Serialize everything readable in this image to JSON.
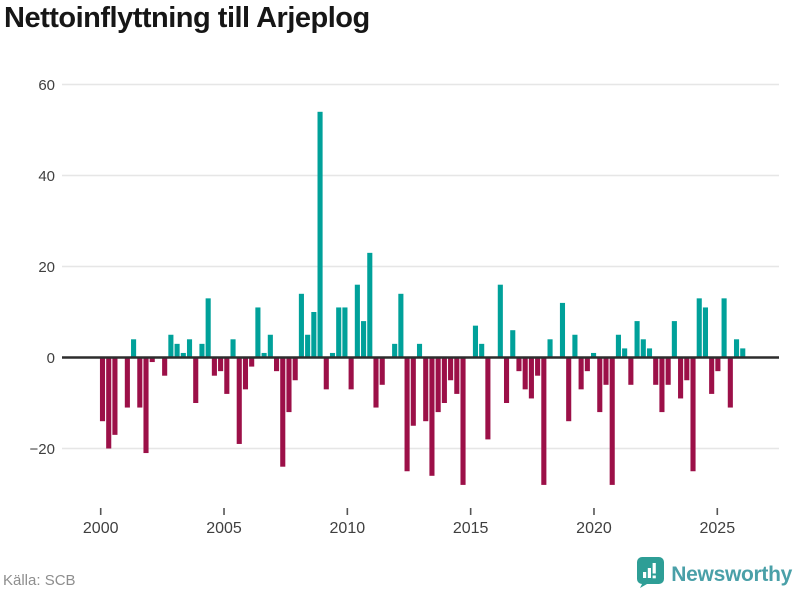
{
  "title": "Nettoinflyttning till Arjeplog",
  "source": "Källa: SCB",
  "brand": "Newsworthy",
  "chart_data": {
    "type": "bar",
    "title": "Nettoinflyttning till Arjeplog",
    "xlabel": "",
    "ylabel": "",
    "x_tick_labels": [
      "2000",
      "2005",
      "2010",
      "2015",
      "2020",
      "2025"
    ],
    "y_ticks": [
      60,
      40,
      20,
      0,
      -20
    ],
    "y_tick_labels": [
      "60",
      "40",
      "20",
      "0",
      "−20"
    ],
    "ylim": [
      -32,
      62
    ],
    "grid": "horizontal",
    "legend": "none",
    "bar_unit": "quarter",
    "positive_color": "#00a19a",
    "negative_color": "#9c1048",
    "series_by_year": [
      {
        "year": 2000,
        "values": [
          -14,
          -20,
          -17,
          0
        ]
      },
      {
        "year": 2001,
        "values": [
          -11,
          4,
          -11,
          -21
        ]
      },
      {
        "year": 2002,
        "values": [
          -1,
          0,
          -4,
          5
        ]
      },
      {
        "year": 2003,
        "values": [
          3,
          1,
          4,
          -10
        ]
      },
      {
        "year": 2004,
        "values": [
          3,
          13,
          -4,
          -3
        ]
      },
      {
        "year": 2005,
        "values": [
          -8,
          4,
          -19,
          -7
        ]
      },
      {
        "year": 2006,
        "values": [
          -2,
          11,
          1,
          5
        ]
      },
      {
        "year": 2007,
        "values": [
          -3,
          -24,
          -12,
          -5
        ]
      },
      {
        "year": 2008,
        "values": [
          14,
          5,
          10,
          54
        ]
      },
      {
        "year": 2009,
        "values": [
          -7,
          1,
          11,
          11
        ]
      },
      {
        "year": 2010,
        "values": [
          -7,
          16,
          8,
          23
        ]
      },
      {
        "year": 2011,
        "values": [
          -11,
          -6,
          0,
          3
        ]
      },
      {
        "year": 2012,
        "values": [
          14,
          -25,
          -15,
          3
        ]
      },
      {
        "year": 2013,
        "values": [
          -14,
          -26,
          -12,
          -10
        ]
      },
      {
        "year": 2014,
        "values": [
          -5,
          -8,
          -28,
          0
        ]
      },
      {
        "year": 2015,
        "values": [
          7,
          3,
          -18,
          0
        ]
      },
      {
        "year": 2016,
        "values": [
          16,
          -10,
          6,
          -3
        ]
      },
      {
        "year": 2017,
        "values": [
          -7,
          -9,
          -4,
          -28
        ]
      },
      {
        "year": 2018,
        "values": [
          4,
          0,
          12,
          -14
        ]
      },
      {
        "year": 2019,
        "values": [
          5,
          -7,
          -3,
          1
        ]
      },
      {
        "year": 2020,
        "values": [
          -12,
          -6,
          -28,
          5
        ]
      },
      {
        "year": 2021,
        "values": [
          2,
          -6,
          8,
          4
        ]
      },
      {
        "year": 2022,
        "values": [
          2,
          -6,
          -12,
          -6
        ]
      },
      {
        "year": 2023,
        "values": [
          8,
          -9,
          -5,
          -25
        ]
      },
      {
        "year": 2024,
        "values": [
          13,
          11,
          -8,
          -3
        ]
      },
      {
        "year": 2025,
        "values": [
          13,
          -11,
          4,
          2
        ]
      }
    ]
  }
}
